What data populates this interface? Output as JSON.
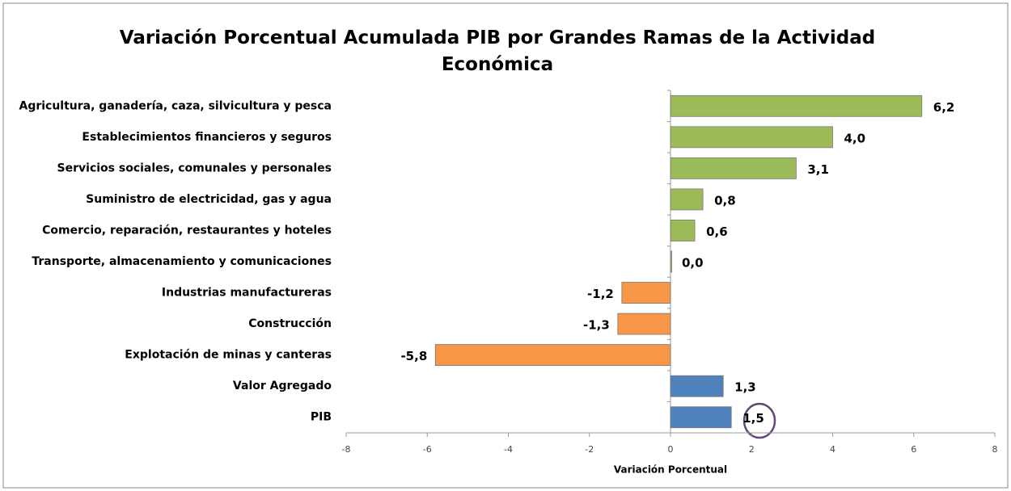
{
  "chart_data": {
    "type": "bar",
    "orientation": "horizontal",
    "title": "Variación Porcentual Acumulada PIB por Grandes Ramas de la Actividad Económica",
    "xlabel": "Variación Porcentual",
    "categories": [
      "Agricultura, ganadería, caza, silvicultura y pesca",
      "Establecimientos financieros y seguros",
      "Servicios sociales, comunales y personales",
      "Suministro de electricidad, gas y agua",
      "Comercio, reparación, restaurantes y hoteles",
      "Transporte, almacenamiento y comunicaciones",
      "Industrias manufactureras",
      "Construcción",
      "Explotación de minas y canteras",
      "Valor Agregado",
      "PIB"
    ],
    "values": [
      6.2,
      4.0,
      3.1,
      0.8,
      0.6,
      0.0,
      -1.2,
      -1.3,
      -5.8,
      1.3,
      1.5
    ],
    "value_labels": [
      "6,2",
      "4,0",
      "3,1",
      "0,8",
      "0,6",
      "0,0",
      "-1,2",
      "-1,3",
      "-5,8",
      "1,3",
      "1,5"
    ],
    "colors": [
      "#9bbb59",
      "#9bbb59",
      "#9bbb59",
      "#9bbb59",
      "#9bbb59",
      "#9bbb59",
      "#f79646",
      "#f79646",
      "#f79646",
      "#4f81bd",
      "#4f81bd"
    ],
    "xlim": [
      -8,
      8
    ],
    "xticks": [
      -8,
      -6,
      -4,
      -2,
      0,
      2,
      4,
      6,
      8
    ],
    "grid": false
  }
}
